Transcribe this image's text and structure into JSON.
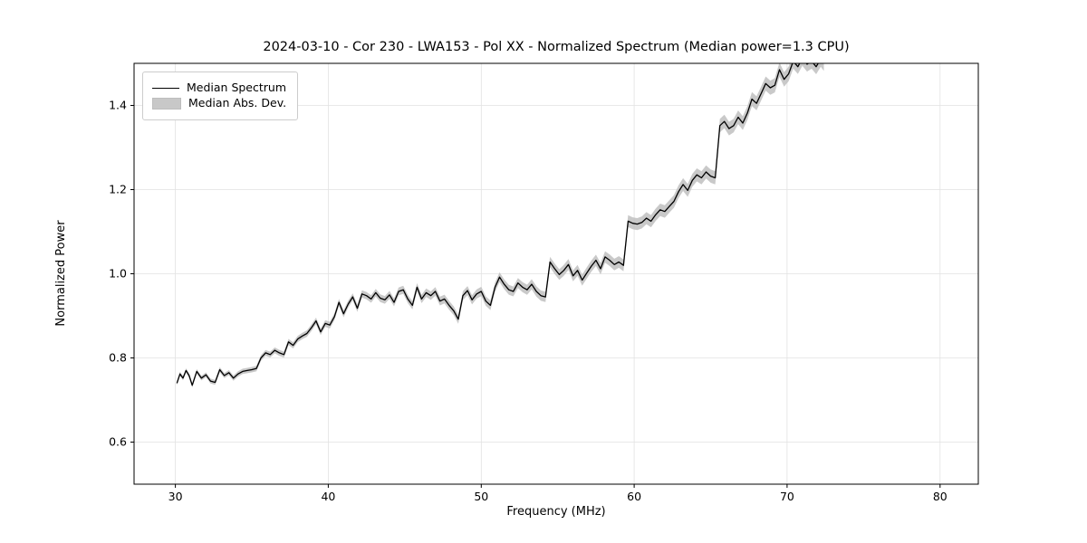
{
  "chart_data": {
    "type": "line",
    "title": "2024-03-10 - Cor 230 - LWA153 - Pol XX - Normalized Spectrum (Median power=1.3 CPU)",
    "xlabel": "Frequency (MHz)",
    "ylabel": "Normalized Power",
    "legend": [
      {
        "label": "Median Spectrum",
        "style": "line",
        "color": "#000000"
      },
      {
        "label": "Median Abs. Dev.",
        "style": "band",
        "color": "#c8c8c8"
      }
    ],
    "legend_position": "upper left",
    "grid": true,
    "axes": {
      "xlim": [
        27.3,
        82.5
      ],
      "ylim": [
        0.5,
        1.5
      ],
      "xticks": [
        30,
        40,
        50,
        60,
        70,
        80
      ],
      "yticks": [
        0.6,
        0.8,
        1.0,
        1.2,
        1.4
      ]
    },
    "colors": {
      "line": "#000000",
      "band": "#bfbfbf",
      "grid": "#e2e2e2",
      "frame": "#000000"
    },
    "mad": {
      "start": 0.005,
      "end": 0.018
    },
    "points": [
      [
        30.1,
        0.74
      ],
      [
        30.3,
        0.762
      ],
      [
        30.5,
        0.752
      ],
      [
        30.7,
        0.77
      ],
      [
        30.9,
        0.758
      ],
      [
        31.1,
        0.735
      ],
      [
        31.4,
        0.768
      ],
      [
        31.7,
        0.752
      ],
      [
        32.0,
        0.76
      ],
      [
        32.3,
        0.745
      ],
      [
        32.6,
        0.742
      ],
      [
        32.9,
        0.772
      ],
      [
        33.2,
        0.758
      ],
      [
        33.5,
        0.765
      ],
      [
        33.8,
        0.752
      ],
      [
        34.1,
        0.762
      ],
      [
        34.4,
        0.768
      ],
      [
        34.7,
        0.77
      ],
      [
        35.0,
        0.772
      ],
      [
        35.3,
        0.775
      ],
      [
        35.6,
        0.8
      ],
      [
        35.9,
        0.812
      ],
      [
        36.2,
        0.808
      ],
      [
        36.5,
        0.818
      ],
      [
        36.8,
        0.812
      ],
      [
        37.1,
        0.808
      ],
      [
        37.4,
        0.838
      ],
      [
        37.7,
        0.83
      ],
      [
        38.0,
        0.845
      ],
      [
        38.3,
        0.852
      ],
      [
        38.6,
        0.858
      ],
      [
        38.9,
        0.872
      ],
      [
        39.2,
        0.888
      ],
      [
        39.5,
        0.862
      ],
      [
        39.8,
        0.882
      ],
      [
        40.1,
        0.878
      ],
      [
        40.4,
        0.898
      ],
      [
        40.7,
        0.932
      ],
      [
        41.0,
        0.905
      ],
      [
        41.3,
        0.928
      ],
      [
        41.6,
        0.945
      ],
      [
        41.9,
        0.918
      ],
      [
        42.2,
        0.952
      ],
      [
        42.5,
        0.948
      ],
      [
        42.8,
        0.94
      ],
      [
        43.1,
        0.955
      ],
      [
        43.4,
        0.942
      ],
      [
        43.7,
        0.938
      ],
      [
        44.0,
        0.95
      ],
      [
        44.3,
        0.932
      ],
      [
        44.6,
        0.958
      ],
      [
        44.9,
        0.962
      ],
      [
        45.2,
        0.94
      ],
      [
        45.5,
        0.925
      ],
      [
        45.8,
        0.968
      ],
      [
        46.1,
        0.94
      ],
      [
        46.4,
        0.955
      ],
      [
        46.7,
        0.948
      ],
      [
        47.0,
        0.958
      ],
      [
        47.3,
        0.935
      ],
      [
        47.6,
        0.94
      ],
      [
        47.9,
        0.925
      ],
      [
        48.2,
        0.912
      ],
      [
        48.5,
        0.892
      ],
      [
        48.8,
        0.948
      ],
      [
        49.1,
        0.96
      ],
      [
        49.4,
        0.938
      ],
      [
        49.7,
        0.952
      ],
      [
        50.0,
        0.958
      ],
      [
        50.3,
        0.935
      ],
      [
        50.6,
        0.925
      ],
      [
        50.9,
        0.968
      ],
      [
        51.2,
        0.992
      ],
      [
        51.5,
        0.975
      ],
      [
        51.8,
        0.962
      ],
      [
        52.1,
        0.958
      ],
      [
        52.4,
        0.978
      ],
      [
        52.7,
        0.968
      ],
      [
        53.0,
        0.962
      ],
      [
        53.3,
        0.975
      ],
      [
        53.6,
        0.958
      ],
      [
        53.9,
        0.948
      ],
      [
        54.2,
        0.945
      ],
      [
        54.5,
        1.028
      ],
      [
        54.8,
        1.012
      ],
      [
        55.1,
        0.998
      ],
      [
        55.4,
        1.008
      ],
      [
        55.7,
        1.022
      ],
      [
        56.0,
        0.995
      ],
      [
        56.3,
        1.008
      ],
      [
        56.6,
        0.985
      ],
      [
        56.9,
        1.002
      ],
      [
        57.2,
        1.018
      ],
      [
        57.5,
        1.032
      ],
      [
        57.8,
        1.012
      ],
      [
        58.1,
        1.04
      ],
      [
        58.4,
        1.032
      ],
      [
        58.7,
        1.022
      ],
      [
        59.0,
        1.028
      ],
      [
        59.3,
        1.02
      ],
      [
        59.6,
        1.125
      ],
      [
        59.9,
        1.12
      ],
      [
        60.2,
        1.118
      ],
      [
        60.5,
        1.122
      ],
      [
        60.8,
        1.132
      ],
      [
        61.1,
        1.125
      ],
      [
        61.4,
        1.14
      ],
      [
        61.7,
        1.152
      ],
      [
        62.0,
        1.148
      ],
      [
        62.3,
        1.16
      ],
      [
        62.6,
        1.172
      ],
      [
        62.9,
        1.195
      ],
      [
        63.2,
        1.212
      ],
      [
        63.5,
        1.198
      ],
      [
        63.8,
        1.222
      ],
      [
        64.1,
        1.235
      ],
      [
        64.4,
        1.228
      ],
      [
        64.7,
        1.242
      ],
      [
        65.0,
        1.232
      ],
      [
        65.3,
        1.228
      ],
      [
        65.6,
        1.352
      ],
      [
        65.9,
        1.362
      ],
      [
        66.2,
        1.345
      ],
      [
        66.5,
        1.352
      ],
      [
        66.8,
        1.372
      ],
      [
        67.1,
        1.358
      ],
      [
        67.4,
        1.382
      ],
      [
        67.7,
        1.415
      ],
      [
        68.0,
        1.405
      ],
      [
        68.3,
        1.428
      ],
      [
        68.6,
        1.452
      ],
      [
        68.9,
        1.442
      ],
      [
        69.2,
        1.448
      ],
      [
        69.5,
        1.485
      ],
      [
        69.8,
        1.462
      ],
      [
        70.1,
        1.475
      ],
      [
        70.4,
        1.505
      ],
      [
        70.7,
        1.492
      ],
      [
        71.0,
        1.512
      ],
      [
        71.3,
        1.498
      ],
      [
        71.6,
        1.505
      ],
      [
        71.9,
        1.492
      ],
      [
        72.2,
        1.51
      ],
      [
        72.4,
        1.5
      ]
    ]
  }
}
